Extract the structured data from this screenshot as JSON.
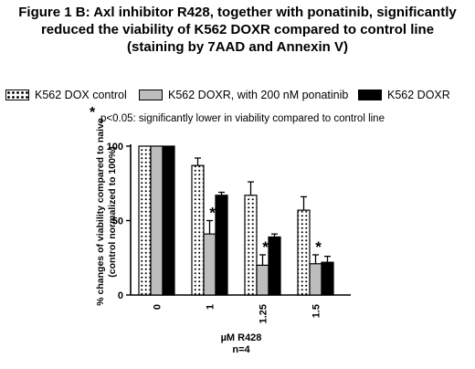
{
  "title_lines": [
    "Figure 1 B: Axl inhibitor R428, together with ponatinib, significantly",
    "reduced the viability of K562 DOXR compared to control line",
    "(staining by 7AAD and Annexin V)"
  ],
  "significance_note": {
    "symbol": "*",
    "text": "p<0.05: significantly lower in viability compared to control line"
  },
  "chart_data": {
    "type": "bar",
    "categories": [
      "0",
      "1",
      "1.25",
      "1.5"
    ],
    "xlabel": "µM R428",
    "xlabel2": "n=4",
    "ylabel_lines": [
      "% changes of viability compared to naive",
      "(control normalized to 100%)"
    ],
    "ylim": [
      0,
      100
    ],
    "yticks": [
      0,
      50,
      100
    ],
    "yticks_labels": [
      "0",
      "50",
      "100"
    ],
    "grid": false,
    "legend_position": "top",
    "series": [
      {
        "name": "K562 DOX control",
        "pattern": "dots",
        "values": [
          100,
          87,
          67,
          57
        ],
        "errors": [
          0,
          5,
          9,
          9
        ],
        "significant": [
          false,
          false,
          false,
          false
        ]
      },
      {
        "name": "K562 DOXR, with 200 nM ponatinib",
        "pattern": "gray",
        "values": [
          100,
          41,
          20,
          21
        ],
        "errors": [
          0,
          9,
          7,
          6
        ],
        "significant": [
          false,
          true,
          true,
          true
        ]
      },
      {
        "name": "K562 DOXR",
        "pattern": "black",
        "values": [
          100,
          67,
          39,
          22
        ],
        "errors": [
          0,
          2,
          2,
          4
        ],
        "significant": [
          false,
          false,
          false,
          false
        ]
      }
    ],
    "colors": {
      "gray": "#bdbdbd",
      "black": "#000000",
      "outline": "#000000"
    }
  }
}
